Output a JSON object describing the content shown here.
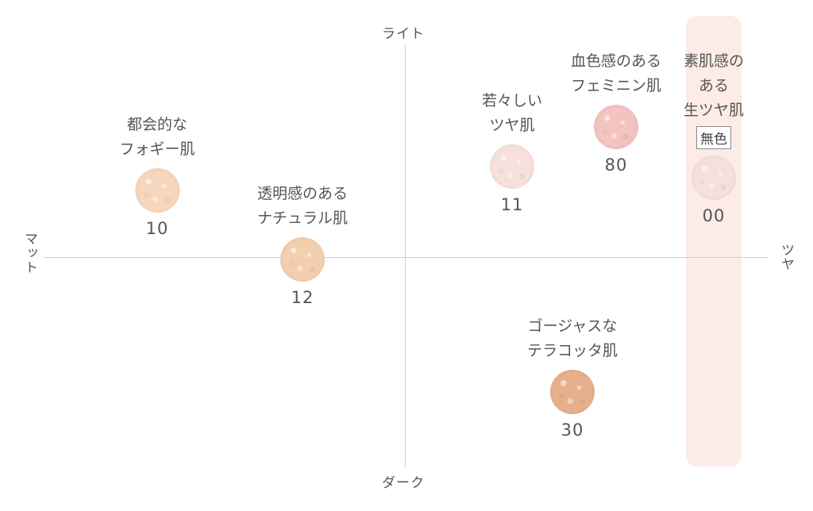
{
  "axes": {
    "top": "ライト",
    "bottom": "ダーク",
    "left": "マット",
    "right": "ツヤ"
  },
  "products": [
    {
      "id": "10",
      "lines": [
        "都会的な",
        "フォギー肌"
      ],
      "number": "10",
      "color": "#f6d7bd"
    },
    {
      "id": "12",
      "lines": [
        "透明感のある",
        "ナチュラル肌"
      ],
      "number": "12",
      "color": "#f4cfaf"
    },
    {
      "id": "11",
      "lines": [
        "若々しい",
        "ツヤ肌"
      ],
      "number": "11",
      "color": "#f7e0dc"
    },
    {
      "id": "80",
      "lines": [
        "血色感のある",
        "フェミニン肌"
      ],
      "number": "80",
      "color": "#f3c3c0"
    },
    {
      "id": "00",
      "lines": [
        "素肌感の",
        "ある",
        "生ツヤ肌"
      ],
      "badge": "無色",
      "number": "00",
      "color": "#f4e0dd"
    },
    {
      "id": "30",
      "lines": [
        "ゴージャスな",
        "テラコッタ肌"
      ],
      "number": "30",
      "color": "#e5b08b"
    }
  ]
}
